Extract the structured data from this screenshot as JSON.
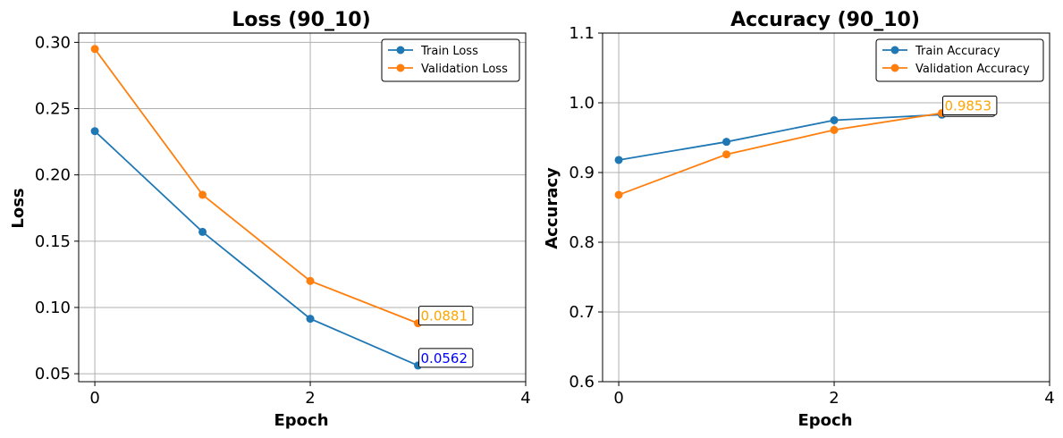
{
  "chart_data": [
    {
      "type": "line",
      "title": "Loss (90_10)",
      "xlabel": "Epoch",
      "ylabel": "Loss",
      "x": [
        0,
        1,
        2,
        3
      ],
      "xlim": [
        -0.15,
        4
      ],
      "ylim": [
        0.044,
        0.307
      ],
      "xticks": [
        0,
        2,
        4
      ],
      "xtick_labels": [
        "0",
        "2",
        "4"
      ],
      "yticks": [
        0.05,
        0.1,
        0.15,
        0.2,
        0.25,
        0.3
      ],
      "ytick_labels": [
        "0.05",
        "0.10",
        "0.15",
        "0.20",
        "0.25",
        "0.30"
      ],
      "grid": true,
      "legend_position": "top-right",
      "series": [
        {
          "name": "Train Loss",
          "values": [
            0.233,
            0.157,
            0.0915,
            0.0562
          ],
          "color": "#1f77b4"
        },
        {
          "name": "Validation Loss",
          "values": [
            0.295,
            0.185,
            0.12,
            0.0881
          ],
          "color": "#ff7f0e"
        }
      ],
      "annotations": [
        {
          "text": "0.0881",
          "x": 3,
          "y": 0.0881,
          "color": "#ffa500"
        },
        {
          "text": "0.0562",
          "x": 3,
          "y": 0.0562,
          "color": "#0000ff"
        }
      ]
    },
    {
      "type": "line",
      "title": "Accuracy (90_10)",
      "xlabel": "Epoch",
      "ylabel": "Accuracy",
      "x": [
        0,
        1,
        2,
        3
      ],
      "xlim": [
        -0.15,
        4
      ],
      "ylim": [
        0.6,
        1.1
      ],
      "xticks": [
        0,
        2,
        4
      ],
      "xtick_labels": [
        "0",
        "2",
        "4"
      ],
      "yticks": [
        0.6,
        0.7,
        0.8,
        0.9,
        1.0,
        1.1
      ],
      "ytick_labels": [
        "0.6",
        "0.7",
        "0.8",
        "0.9",
        "1.0",
        "1.1"
      ],
      "grid": true,
      "legend_position": "top-right",
      "series": [
        {
          "name": "Train Accuracy",
          "values": [
            0.918,
            0.944,
            0.975,
            0.983
          ],
          "color": "#1f77b4"
        },
        {
          "name": "Validation Accuracy",
          "values": [
            0.868,
            0.926,
            0.961,
            0.9853
          ],
          "color": "#ff7f0e"
        }
      ],
      "annotations": [
        {
          "text": "",
          "x": 3,
          "y": 0.983,
          "color": "#0000ff"
        },
        {
          "text": "0.9853",
          "x": 3,
          "y": 0.9853,
          "color": "#ffa500"
        }
      ]
    }
  ]
}
